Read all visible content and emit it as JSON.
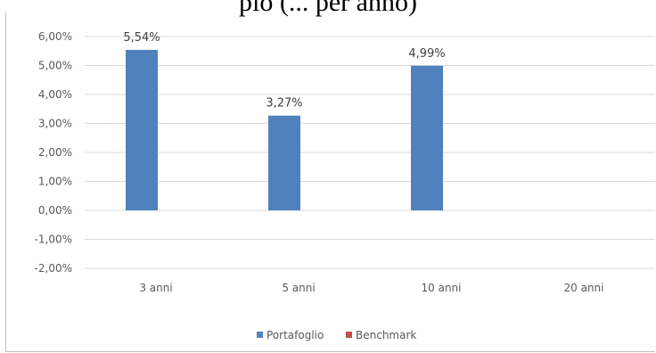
{
  "page_title_fragment": "pio (... per anno)",
  "chart_data": {
    "type": "bar",
    "categories": [
      "3 anni",
      "5 anni",
      "10 anni",
      "20 anni"
    ],
    "series": [
      {
        "name": "Portafoglio",
        "color": "#4f81bd",
        "values": [
          5.54,
          3.27,
          4.99,
          null
        ],
        "data_labels": [
          "5,54%",
          "3,27%",
          "4,99%",
          ""
        ]
      },
      {
        "name": "Benchmark",
        "color": "#c0504d",
        "values": [
          null,
          null,
          null,
          null
        ],
        "data_labels": [
          "",
          "",
          "",
          ""
        ]
      }
    ],
    "ylim": [
      -2,
      6
    ],
    "yticks": [
      6,
      5,
      4,
      3,
      2,
      1,
      0,
      -1,
      -2
    ],
    "ytick_labels": [
      "6,00%",
      "5,00%",
      "4,00%",
      "3,00%",
      "2,00%",
      "1,00%",
      "0,00%",
      "-1,00%",
      "-2,00%"
    ],
    "grid": true,
    "legend_position": "bottom",
    "xlabel": "",
    "ylabel": ""
  }
}
